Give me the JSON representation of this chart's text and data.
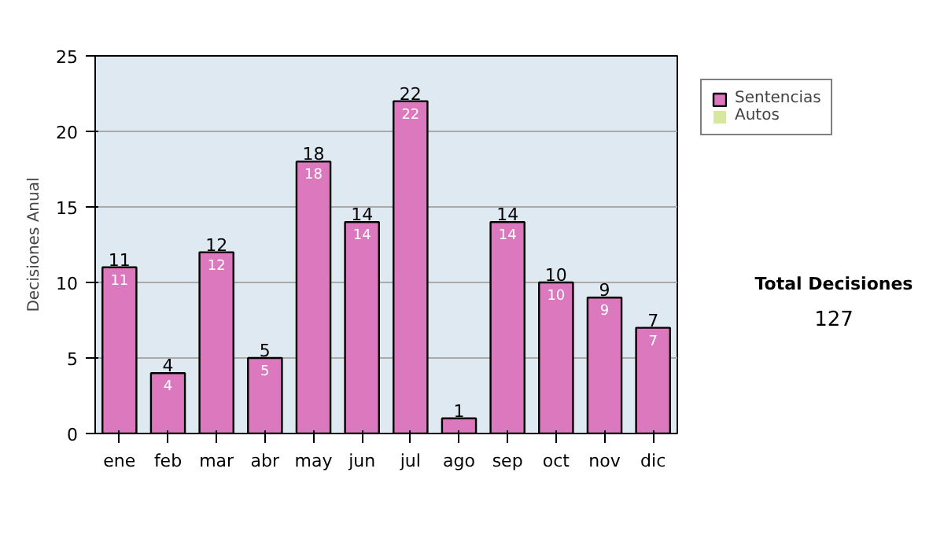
{
  "chart_data": {
    "type": "bar",
    "stacked": true,
    "ylabel": "Decisiones Anual",
    "categories": [
      "ene",
      "feb",
      "mar",
      "abr",
      "may",
      "jun",
      "jul",
      "ago",
      "sep",
      "oct",
      "nov",
      "dic"
    ],
    "series": [
      {
        "name": "Sentencias",
        "color": "#dc78be",
        "values": [
          11,
          4,
          12,
          5,
          18,
          14,
          22,
          1,
          14,
          10,
          9,
          7
        ],
        "value_labels": [
          "11",
          "4",
          "12",
          "5",
          "18",
          "14",
          "22",
          null,
          "14",
          "10",
          "9",
          "7"
        ]
      },
      {
        "name": "Autos",
        "color": "#d4e8a0",
        "values": [
          0,
          0,
          0,
          0,
          0,
          0,
          0,
          0,
          0,
          0,
          0,
          0
        ]
      }
    ],
    "totals": [
      "11",
      "4",
      "12",
      "5",
      "18",
      "14",
      "22",
      "1",
      "14",
      "10",
      "9",
      "7"
    ],
    "ylim": [
      0,
      25
    ],
    "yticks": [
      0,
      5,
      10,
      15,
      20,
      25
    ],
    "grid": "y",
    "legend": "right",
    "annotations": [
      "Total Decisiones",
      "127"
    ]
  }
}
